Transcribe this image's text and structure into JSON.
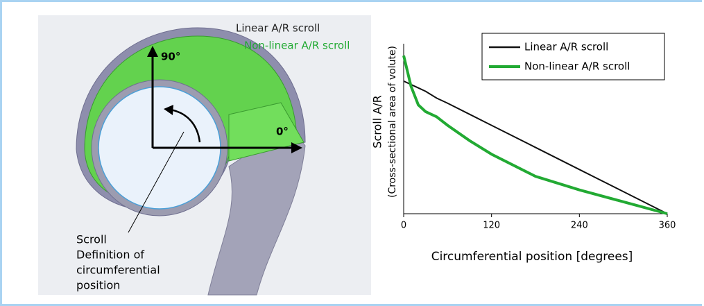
{
  "diagram": {
    "linear_label": "Linear A/R scroll",
    "nonlinear_label": "Non-linear A/R scroll",
    "angle_90": "90°",
    "angle_0": "0°",
    "caption": [
      "Scroll",
      "Definition of",
      "circumferential",
      "position"
    ]
  },
  "chart_data": {
    "type": "line",
    "xlabel": "Circumferential position [degrees]",
    "ylabel": [
      "Scroll A/R",
      "(Cross-sectional area of volute)"
    ],
    "x": [
      0,
      10,
      20,
      30,
      45,
      60,
      90,
      120,
      180,
      240,
      300,
      360
    ],
    "series": [
      {
        "name": "Linear A/R scroll",
        "color": "#111111",
        "values": [
          0.78,
          0.76,
          0.74,
          0.72,
          0.68,
          0.65,
          0.585,
          0.52,
          0.39,
          0.26,
          0.13,
          0
        ]
      },
      {
        "name": "Non-linear A/R scroll",
        "color": "#22aa33",
        "values": [
          0.93,
          0.75,
          0.64,
          0.6,
          0.57,
          0.52,
          0.43,
          0.35,
          0.22,
          0.14,
          0.07,
          0
        ]
      }
    ],
    "xlim": [
      0,
      360
    ],
    "xticks": [
      0,
      120,
      240,
      360
    ],
    "ylim": [
      0,
      1
    ],
    "legend": "upper right"
  }
}
